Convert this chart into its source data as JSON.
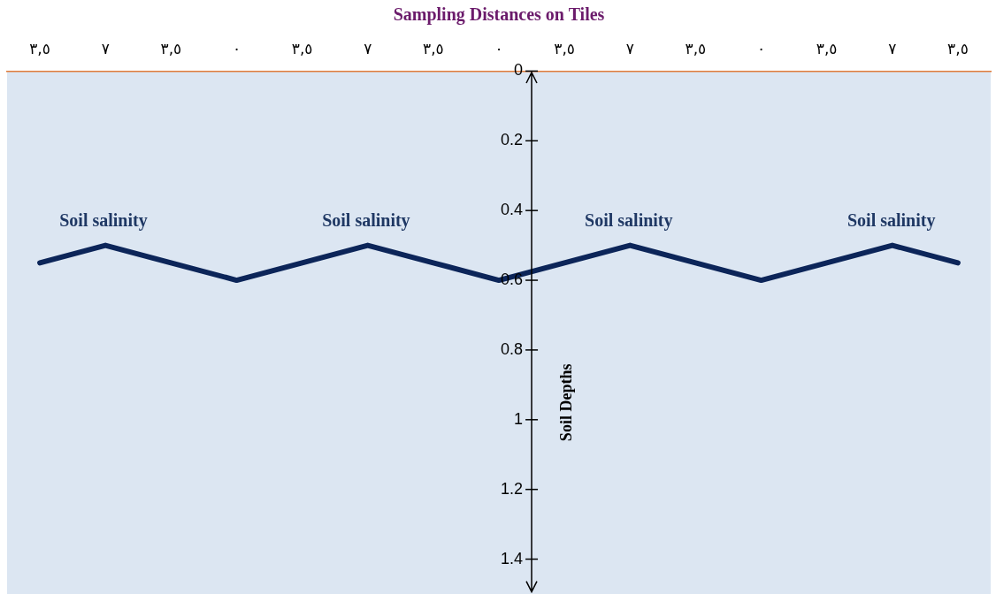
{
  "chart_data": {
    "type": "line",
    "title": "Sampling Distances on Tiles",
    "ylabel": "Soil Depths",
    "categories": [
      "٣,٥",
      "٧",
      "٣,٥",
      "٠",
      "٣,٥",
      "٧",
      "٣,٥",
      "٠",
      "٣,٥",
      "٧",
      "٣,٥",
      "٠",
      "٣,٥",
      "٧",
      "٣,٥"
    ],
    "series": [
      {
        "color": "#0c2559",
        "values": [
          0.55,
          0.5,
          0.55,
          0.6,
          0.55,
          0.5,
          0.55,
          0.6,
          0.55,
          0.5,
          0.55,
          0.6,
          0.55,
          0.5,
          0.55
        ]
      }
    ],
    "ylim": [
      1.5,
      0
    ],
    "yticks": [
      0,
      0.2,
      0.4,
      0.6,
      0.8,
      1,
      1.2,
      1.4
    ],
    "annotations": [
      "Soil salinity",
      "Soil salinity",
      "Soil salinity",
      "Soil salinity"
    ],
    "grid": false,
    "legend": false,
    "marker": "none",
    "line_style": "solid"
  }
}
